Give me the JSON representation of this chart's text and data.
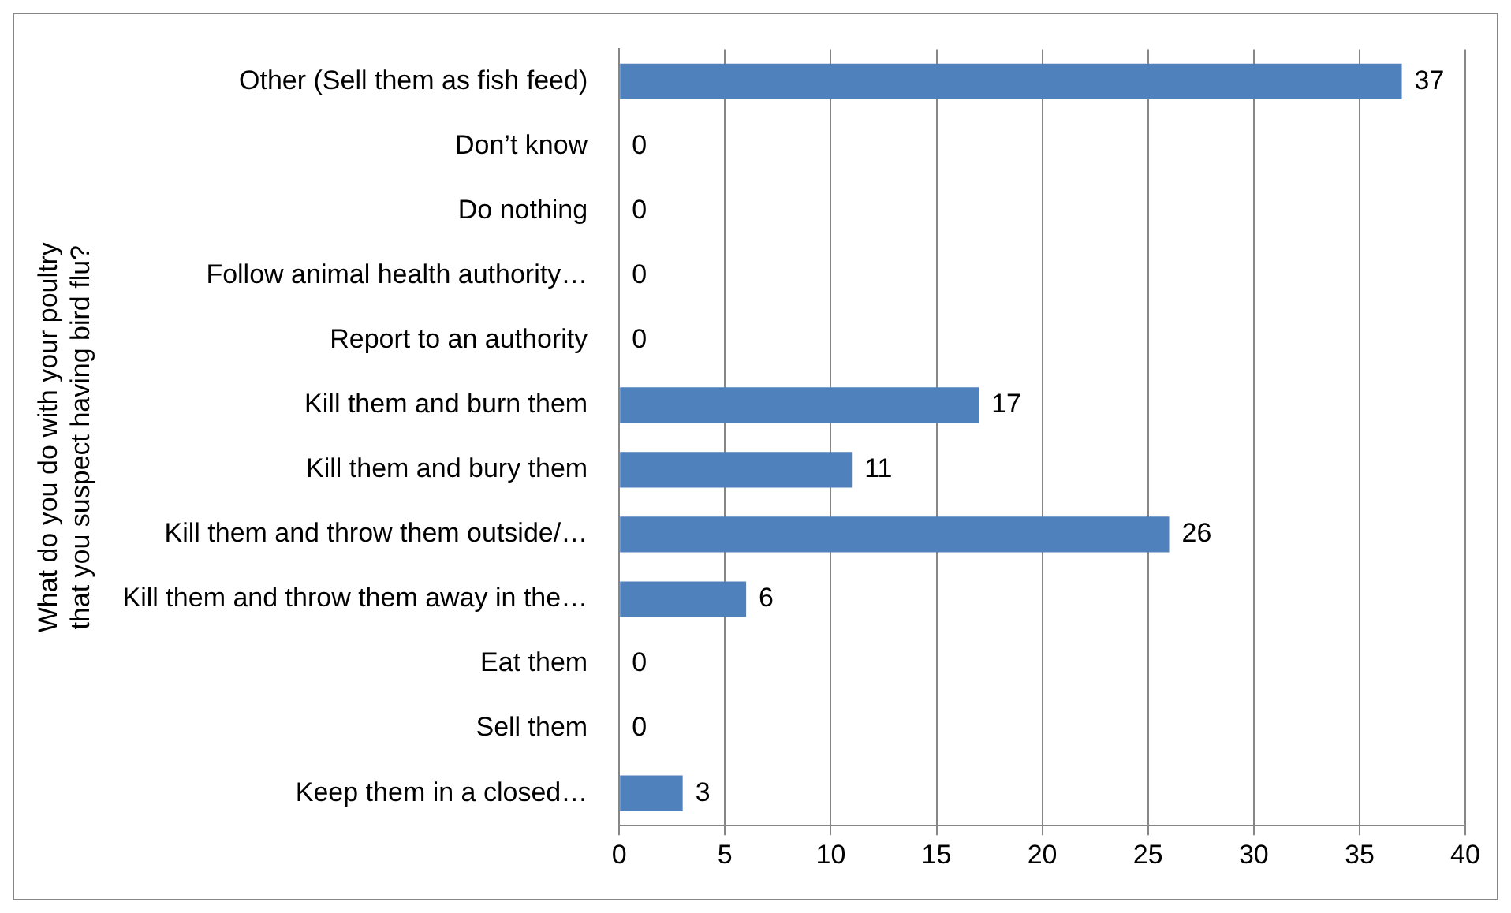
{
  "chart_data": {
    "type": "bar",
    "orientation": "horizontal",
    "ylabel": "What do you do with your poultry that you suspect having bird flu?",
    "categories": [
      "Other (Sell them as fish feed)",
      "Don’t know",
      "Do nothing",
      "Follow animal health authority…",
      "Report to an authority",
      "Kill them and burn them",
      "Kill them and bury them",
      "Kill them and throw them outside/…",
      "Kill them and throw them away in the…",
      "Eat them",
      "Sell them",
      "Keep them in a closed…"
    ],
    "values": [
      37,
      0,
      0,
      0,
      0,
      17,
      11,
      26,
      6,
      0,
      0,
      3
    ],
    "color": "#4f81bd",
    "xlim": [
      0,
      40
    ],
    "xticks": [
      0,
      5,
      10,
      15,
      20,
      25,
      30,
      35,
      40
    ],
    "grid": "x",
    "data_labels": true
  }
}
